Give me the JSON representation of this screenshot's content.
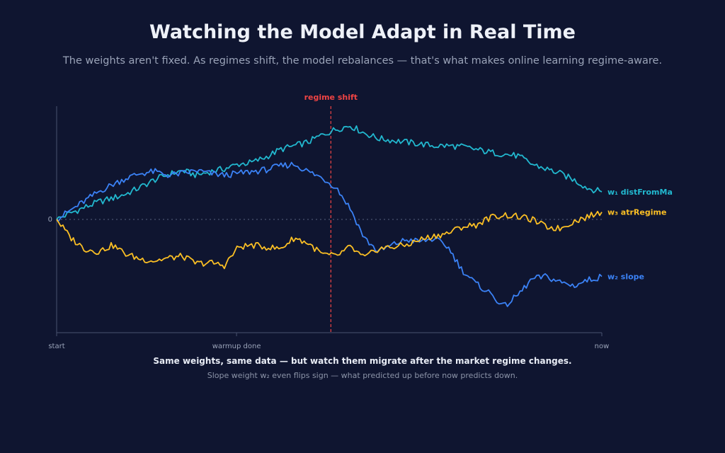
{
  "header": {
    "title": "Watching the Model Adapt in Real Time",
    "subtitle": "The weights aren't fixed. As regimes shift, the model rebalances — that's what makes online learning regime-aware."
  },
  "footer": {
    "caption": "Same weights, same data — but watch them migrate after the market regime changes.",
    "subcaption": "Slope weight w₂ even flips sign — what predicted up before now predicts down."
  },
  "chart_data": {
    "type": "line",
    "title": "",
    "xlabel": "",
    "ylabel": "",
    "x_ticks": [
      {
        "label": "start",
        "pos": 0
      },
      {
        "label": "warmup done",
        "pos": 0.33
      },
      {
        "label": "now",
        "pos": 1
      }
    ],
    "y_ticks": [
      {
        "label": "0",
        "value": 0
      }
    ],
    "zero_line": true,
    "annotations": [
      {
        "label": "regime shift",
        "pos": 0.503,
        "color": "#ef4444"
      }
    ],
    "series": [
      {
        "name": "w₁ distFromMa",
        "color": "#22b8cf",
        "values": [
          0,
          0.07,
          0.13,
          0.19,
          0.23,
          0.28,
          0.35,
          0.43,
          0.49,
          0.53,
          0.48,
          0.52,
          0.55,
          0.6,
          0.62,
          0.68,
          0.76,
          0.8,
          0.84,
          0.92,
          0.98,
          1.02,
          0.94,
          0.88,
          0.86,
          0.84,
          0.82,
          0.8,
          0.8,
          0.79,
          0.76,
          0.73,
          0.71,
          0.69,
          0.6,
          0.55,
          0.5,
          0.43,
          0.34,
          0.3
        ]
      },
      {
        "name": "w₂ slope",
        "color": "#3b82f6",
        "values": [
          0,
          0.1,
          0.2,
          0.3,
          0.38,
          0.45,
          0.5,
          0.52,
          0.48,
          0.5,
          0.53,
          0.5,
          0.48,
          0.5,
          0.52,
          0.54,
          0.58,
          0.6,
          0.52,
          0.45,
          0.35,
          0.12,
          -0.2,
          -0.35,
          -0.28,
          -0.22,
          -0.24,
          -0.21,
          -0.3,
          -0.55,
          -0.7,
          -0.8,
          -0.95,
          -0.82,
          -0.65,
          -0.62,
          -0.68,
          -0.72,
          -0.66,
          -0.62
        ]
      },
      {
        "name": "w₃ atrRegime",
        "color": "#fbbf24",
        "values": [
          0,
          -0.2,
          -0.32,
          -0.35,
          -0.28,
          -0.38,
          -0.43,
          -0.45,
          -0.42,
          -0.4,
          -0.48,
          -0.47,
          -0.5,
          -0.3,
          -0.28,
          -0.3,
          -0.32,
          -0.2,
          -0.26,
          -0.38,
          -0.4,
          -0.3,
          -0.42,
          -0.32,
          -0.3,
          -0.28,
          -0.22,
          -0.18,
          -0.15,
          -0.08,
          -0.06,
          0.02,
          0.05,
          0.03,
          0.0,
          -0.08,
          -0.1,
          -0.02,
          0.03,
          0.08
        ]
      }
    ]
  }
}
